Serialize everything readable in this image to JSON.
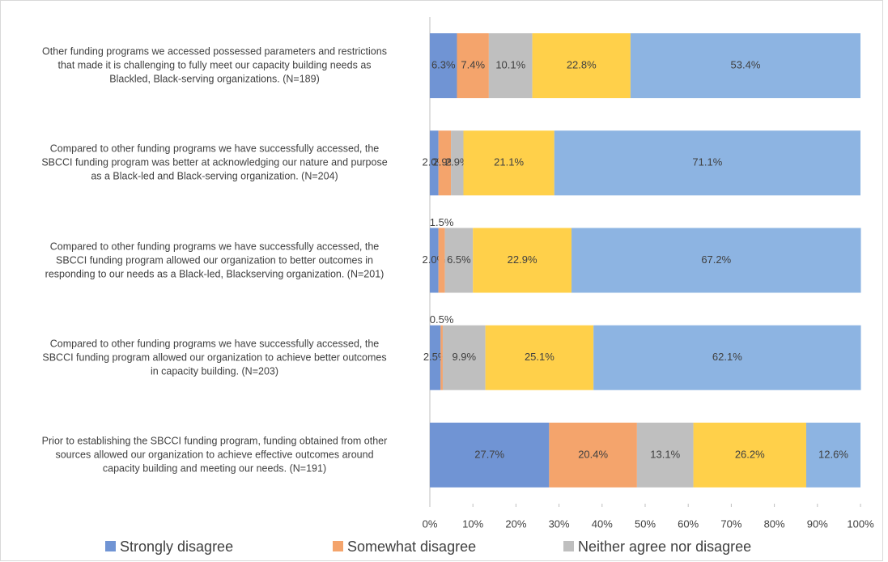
{
  "chart_data": {
    "type": "stacked_barh",
    "categories": [
      "Other funding programs we accessed possessed parameters and restrictions\nthat made it is challenging to fully meet our capacity building needs as\nBlackled, Black-serving organizations. (N=189)",
      "Compared to other funding programs we have successfully accessed, the\nSBCCI funding program was better at acknowledging our nature and purpose\nas a Black-led and Black-serving organization. (N=204)",
      "Compared to other funding programs we have successfully accessed, the\nSBCCI funding program allowed our organization to better outcomes in\nresponding to our needs as a Black-led, Blackserving organization. (N=201)",
      "Compared to other funding programs we have successfully accessed, the\nSBCCI funding program allowed our organization to achieve better outcomes\nin capacity building. (N=203)",
      "Prior to establishing the SBCCI funding program, funding obtained from other\nsources allowed our organization to achieve effective outcomes around\ncapacity building and meeting our needs. (N=191)"
    ],
    "series": [
      {
        "name": "Strongly disagree",
        "color": "#7094d4",
        "values": [
          6.3,
          2.0,
          2.0,
          2.5,
          27.7
        ],
        "value_labels": [
          "6.3%",
          "2.0%",
          "2.0%",
          "2.5%",
          "27.7%"
        ]
      },
      {
        "name": "Somewhat disagree",
        "color": "#f4a46c",
        "values": [
          7.4,
          2.9,
          1.5,
          0.5,
          20.4
        ],
        "value_labels": [
          "7.4%",
          "2.9%",
          "1.5%",
          "0.5%",
          "20.4%"
        ]
      },
      {
        "name": "Neither agree nor disagree",
        "color": "#bfbfbf",
        "values": [
          10.1,
          2.9,
          6.5,
          9.9,
          13.1
        ],
        "value_labels": [
          "10.1%",
          "2.9%",
          "6.5%",
          "9.9%",
          "13.1%"
        ]
      },
      {
        "color": "#ffd04a",
        "values": [
          22.8,
          21.1,
          22.9,
          25.1,
          26.2
        ],
        "value_labels": [
          "22.8%",
          "21.1%",
          "22.9%",
          "25.1%",
          "26.2%"
        ]
      },
      {
        "color": "#8db4e2",
        "values": [
          53.4,
          71.1,
          67.2,
          62.1,
          12.6
        ],
        "value_labels": [
          "53.4%",
          "71.1%",
          "67.2%",
          "62.1%",
          "12.6%"
        ]
      }
    ],
    "xlim": [
      0,
      100
    ],
    "xticks": [
      {
        "value": 0,
        "label": "0%"
      },
      {
        "value": 10,
        "label": "10%"
      },
      {
        "value": 20,
        "label": "20%"
      },
      {
        "value": 30,
        "label": "30%"
      },
      {
        "value": 40,
        "label": "40%"
      },
      {
        "value": 50,
        "label": "50%"
      },
      {
        "value": 60,
        "label": "60%"
      },
      {
        "value": 70,
        "label": "70%"
      },
      {
        "value": 80,
        "label": "80%"
      },
      {
        "value": 90,
        "label": "90%"
      },
      {
        "value": 100,
        "label": "100%"
      }
    ]
  }
}
